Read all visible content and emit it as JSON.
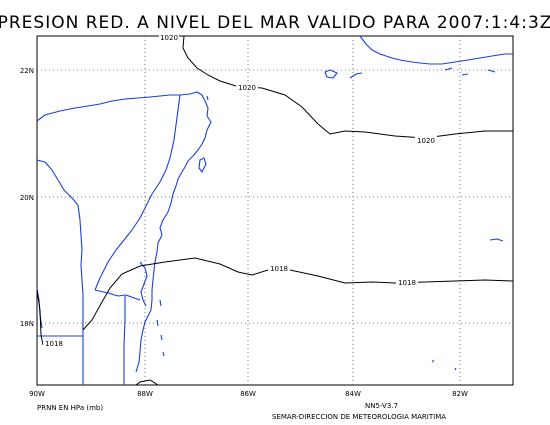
{
  "title": "PRESION RED. A NIVEL DEL MAR VALIDO PARA 2007:1:4:3Z",
  "footer_left": "PRNN EN HPa (mb)",
  "footer_model": "NN5-V3.7",
  "footer_org": "SEMAR-DIRECCION DE METEOROLOGIA MARITIMA",
  "lat_labels": [
    "22N",
    "20N",
    "18N"
  ],
  "lon_labels": [
    "90W",
    "88W",
    "86W",
    "84W",
    "82W"
  ],
  "isobar_labels": [
    "1020",
    "1020",
    "1020",
    "1018",
    "1018",
    "1018"
  ],
  "colors": {
    "coast": "#1a3fe0",
    "isobar": "#000000",
    "grid": "#555555",
    "frame": "#000000"
  }
}
